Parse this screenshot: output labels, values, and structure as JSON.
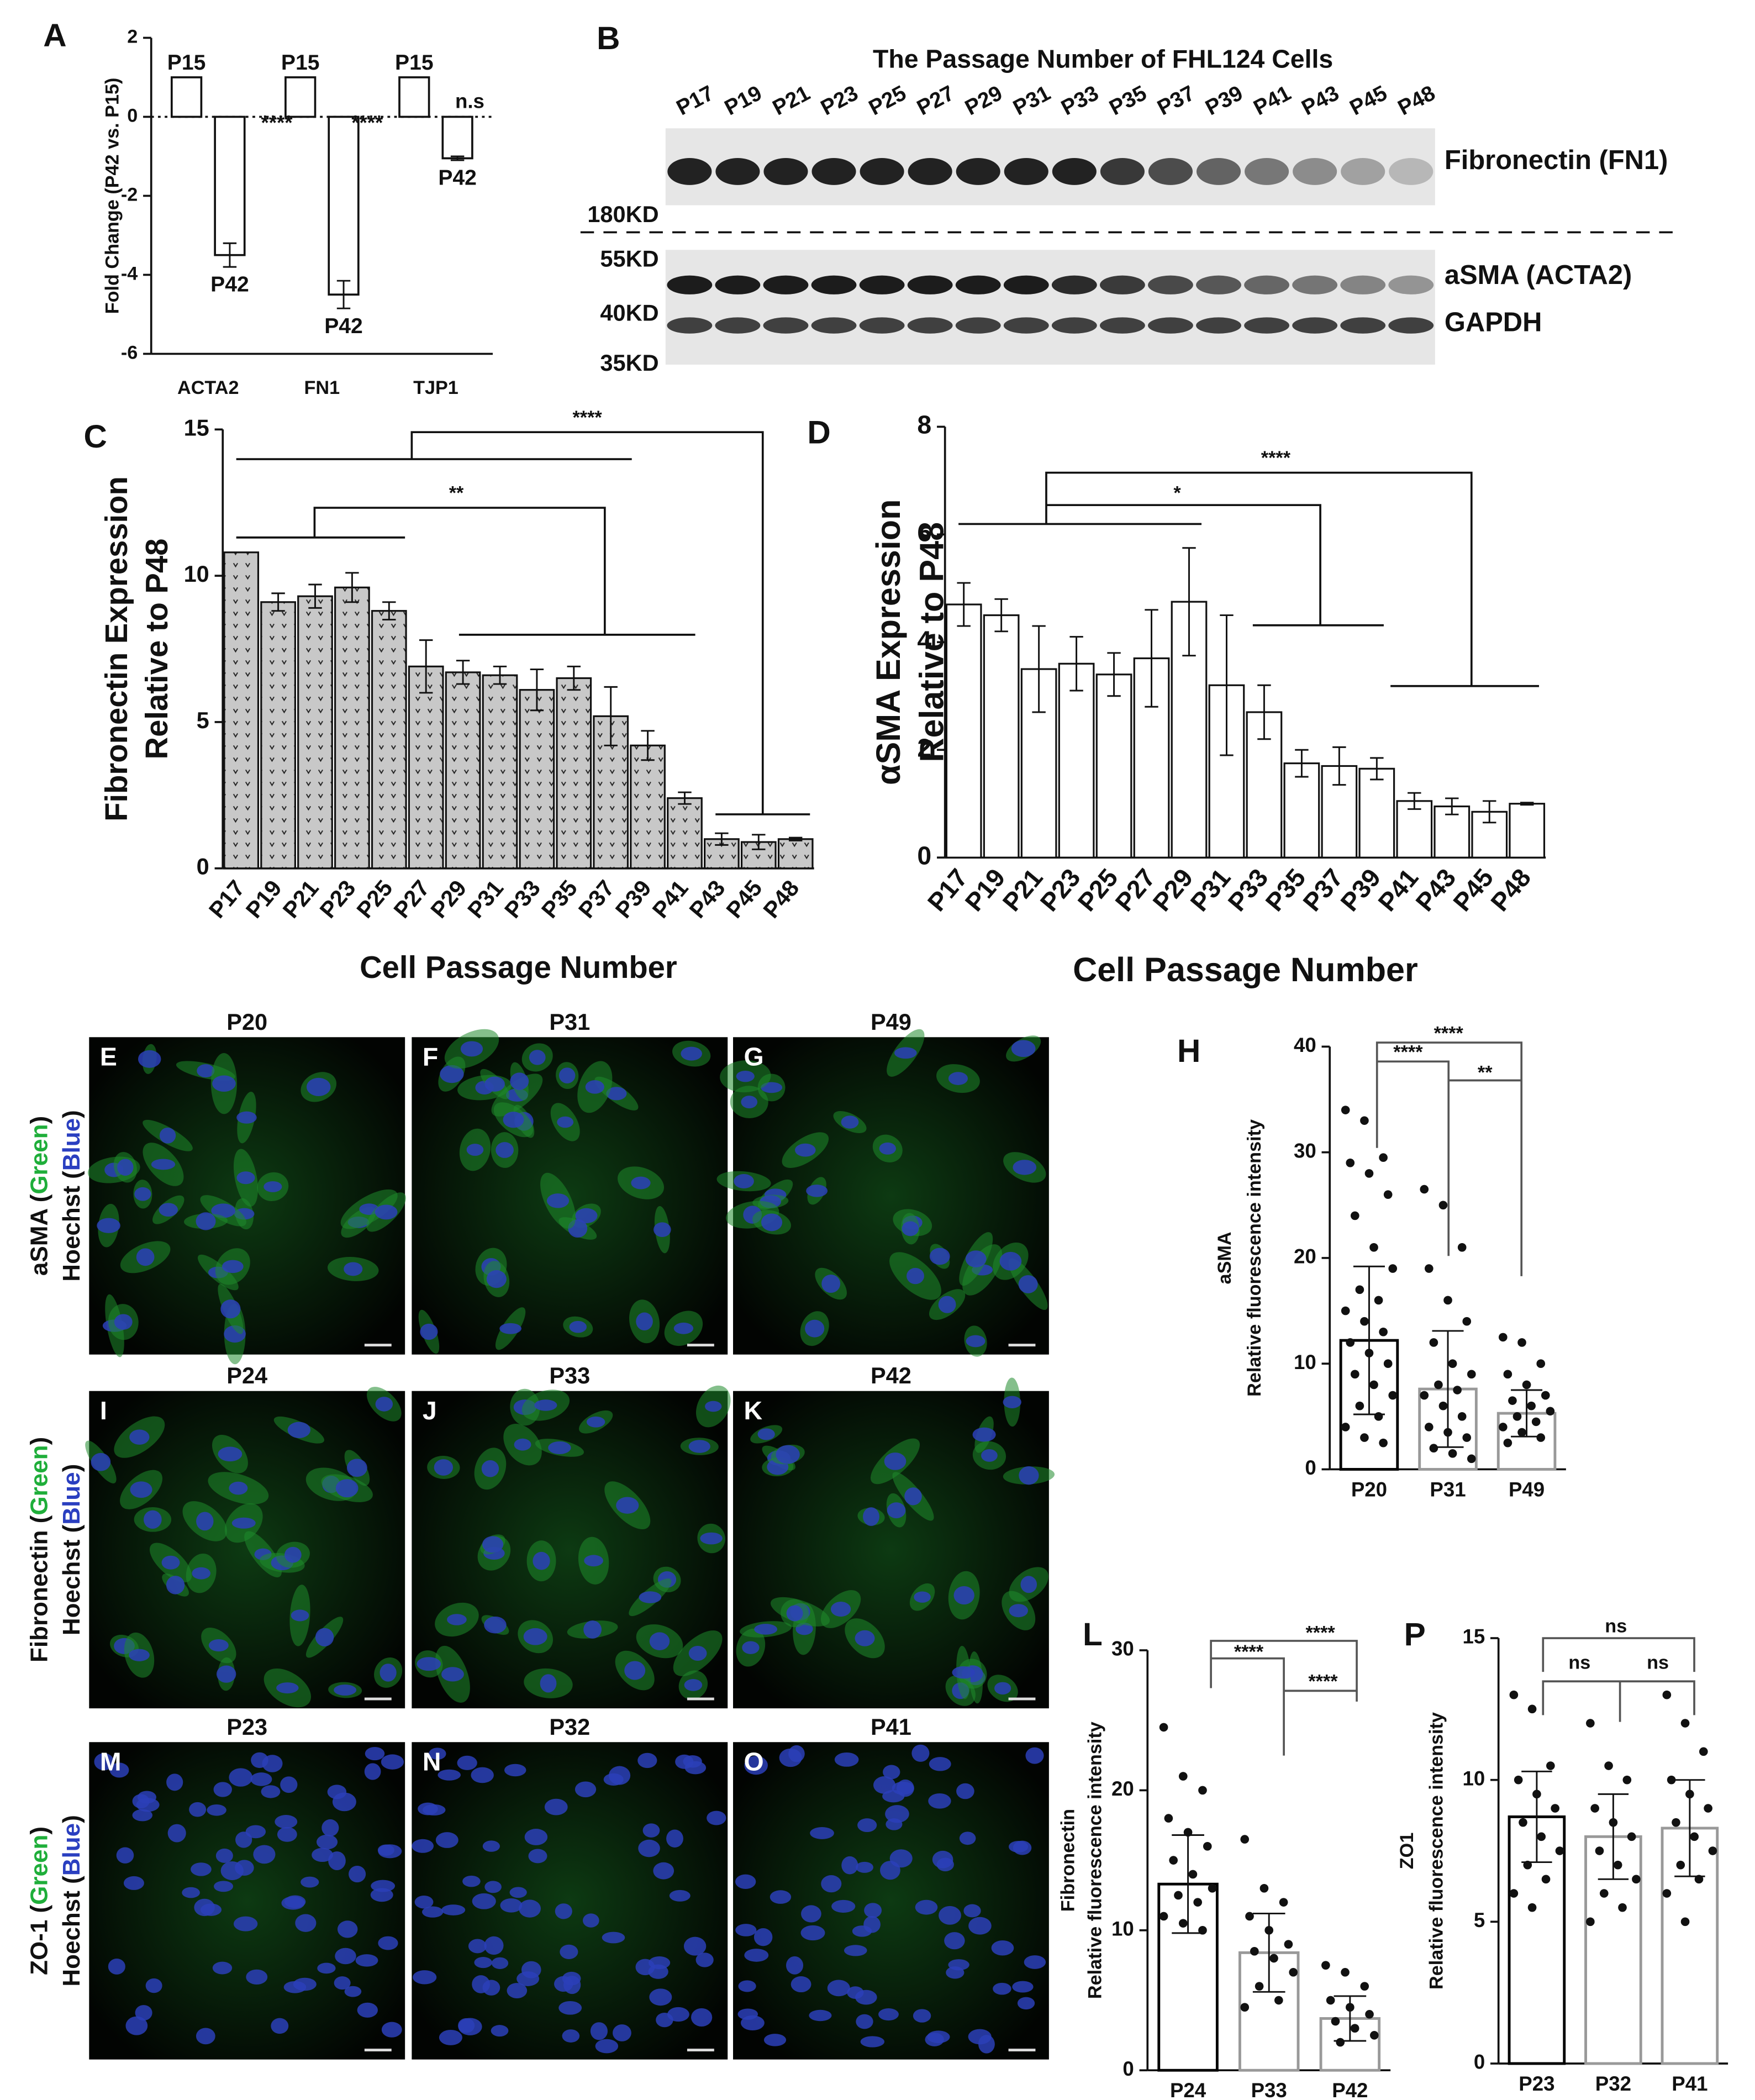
{
  "chart_data": [
    {
      "type": "bar",
      "panel": "A",
      "y_label": [
        "Fold Change (P42 vs. P15)"
      ],
      "categories": [
        "ACTA2",
        "FN1",
        "TJP1"
      ],
      "series": [
        {
          "name": "P15",
          "color": "#ffffff",
          "values": [
            1,
            1,
            1
          ],
          "errors": [
            0,
            0,
            0
          ]
        },
        {
          "name": "P42",
          "color": "#ffffff",
          "values": [
            -3.5,
            -4.5,
            -1.05
          ],
          "errors": [
            0.3,
            0.35,
            0.05
          ]
        }
      ],
      "annotations": [
        "****",
        "****",
        "n.s"
      ],
      "ylim": [
        -6,
        2
      ],
      "yticks": [
        -6,
        -4,
        -2,
        0,
        2
      ]
    },
    {
      "type": "bar",
      "panel": "C",
      "y_label": [
        "Fibronectin Expression",
        "Relative to P48"
      ],
      "x_label": "Cell Passage Number",
      "categories": [
        "P17",
        "P19",
        "P21",
        "P23",
        "P25",
        "P27",
        "P29",
        "P31",
        "P33",
        "P35",
        "P37",
        "P39",
        "P41",
        "P43",
        "P45",
        "P48"
      ],
      "values": [
        10.8,
        9.1,
        9.3,
        9.6,
        8.8,
        6.9,
        6.7,
        6.6,
        6.1,
        6.5,
        5.2,
        4.2,
        2.4,
        1.0,
        0.9,
        1.0
      ],
      "errors": [
        0,
        0.3,
        0.4,
        0.5,
        0.3,
        0.9,
        0.4,
        0.3,
        0.7,
        0.4,
        1.0,
        0.5,
        0.2,
        0.2,
        0.25,
        0.05
      ],
      "color": "#c8c8c8",
      "annotations": [
        "****",
        "**"
      ],
      "ylim": [
        0,
        15
      ],
      "yticks": [
        0,
        5,
        10,
        15
      ]
    },
    {
      "type": "bar",
      "panel": "D",
      "y_label": [
        "αSMA Expression",
        "Relative to P48"
      ],
      "x_label": "Cell Passage Number",
      "categories": [
        "P17",
        "P19",
        "P21",
        "P23",
        "P25",
        "P27",
        "P29",
        "P31",
        "P33",
        "P35",
        "P37",
        "P39",
        "P41",
        "P43",
        "P45",
        "P48"
      ],
      "values": [
        4.7,
        4.5,
        3.5,
        3.6,
        3.4,
        3.7,
        4.75,
        3.2,
        2.7,
        1.75,
        1.7,
        1.65,
        1.05,
        0.95,
        0.85,
        1.0
      ],
      "errors": [
        0.4,
        0.3,
        0.8,
        0.5,
        0.4,
        0.9,
        1.0,
        1.3,
        0.5,
        0.25,
        0.35,
        0.2,
        0.15,
        0.15,
        0.2,
        0.02
      ],
      "color": "#ffffff",
      "annotations": [
        "****",
        "*"
      ],
      "ylim": [
        0,
        8
      ],
      "yticks": [
        0,
        2,
        4,
        6,
        8
      ]
    },
    {
      "type": "dotplot",
      "panel": "H",
      "y_label": [
        "aSMA",
        "Relative fluorescence intensity"
      ],
      "categories": [
        "P20",
        "P31",
        "P49"
      ],
      "colors": [
        "#000000",
        "#999999",
        "#999999"
      ],
      "means": [
        12.2,
        7.6,
        5.3
      ],
      "sds": [
        7,
        5.5,
        2.2
      ],
      "points": [
        [
          34,
          33,
          29.5,
          29,
          28,
          26,
          24,
          21,
          19,
          17,
          16,
          15,
          14,
          13,
          12,
          11,
          10,
          9,
          8,
          7,
          6,
          5,
          4,
          3,
          2.5
        ],
        [
          26.5,
          25,
          21,
          19,
          16,
          14,
          12,
          10,
          9,
          8,
          7.5,
          7,
          6,
          5,
          4,
          3.5,
          3,
          2,
          1.5,
          1
        ],
        [
          12.5,
          12,
          10,
          9,
          8,
          7,
          6.5,
          6,
          5.5,
          5,
          4.5,
          4,
          3.5,
          3,
          2.5
        ]
      ],
      "annotations": [
        "****",
        "****",
        "**"
      ],
      "ylim": [
        0,
        40
      ],
      "yticks": [
        0,
        10,
        20,
        30,
        40
      ]
    },
    {
      "type": "dotplot",
      "panel": "L",
      "y_label": [
        "Fibronectin",
        "Relative fluorescence intensity"
      ],
      "categories": [
        "P24",
        "P33",
        "P42"
      ],
      "colors": [
        "#000000",
        "#999999",
        "#999999"
      ],
      "means": [
        13.3,
        8.4,
        3.7
      ],
      "sds": [
        3.5,
        2.8,
        1.6
      ],
      "points": [
        [
          24.5,
          21,
          20,
          18,
          17,
          16,
          15,
          14,
          13,
          12.5,
          12,
          11,
          10.5,
          10
        ],
        [
          16.5,
          13,
          12,
          11,
          10,
          9,
          8.5,
          8,
          7,
          6,
          5,
          4.5
        ],
        [
          7.5,
          7,
          6,
          5,
          4.5,
          4,
          3.5,
          3,
          2.5,
          2
        ]
      ],
      "annotations": [
        "****",
        "****",
        "****"
      ],
      "ylim": [
        0,
        30
      ],
      "yticks": [
        0,
        10,
        20,
        30
      ]
    },
    {
      "type": "dotplot",
      "panel": "P",
      "y_label": [
        "ZO1",
        "Relative fluorescence intensity"
      ],
      "categories": [
        "P23",
        "P32",
        "P41"
      ],
      "colors": [
        "#000000",
        "#999999",
        "#999999"
      ],
      "means": [
        8.7,
        8.0,
        8.3
      ],
      "sds": [
        1.6,
        1.5,
        1.7
      ],
      "points": [
        [
          13,
          12.5,
          10.5,
          10,
          9.5,
          9,
          8.5,
          8,
          7.5,
          7,
          6.5,
          6,
          5.5
        ],
        [
          12,
          10.5,
          10,
          9,
          8.5,
          8,
          7.5,
          7,
          6.5,
          6,
          5.5,
          5
        ],
        [
          13,
          12,
          11,
          10,
          9.5,
          9,
          8.5,
          8,
          7.5,
          7,
          6.5,
          6,
          5
        ]
      ],
      "annotations": [
        "ns",
        "ns",
        "ns"
      ],
      "ylim": [
        0,
        15
      ],
      "yticks": [
        0,
        5,
        10,
        15
      ]
    }
  ],
  "blot": {
    "panel": "B",
    "title": "The Passage Number of FHL124 Cells",
    "lanes": [
      "P17",
      "P19",
      "P21",
      "P23",
      "P25",
      "P27",
      "P29",
      "P31",
      "P33",
      "P35",
      "P37",
      "P39",
      "P41",
      "P43",
      "P45",
      "P48"
    ],
    "markers": [
      "180KD",
      "55KD",
      "40KD",
      "35KD"
    ],
    "bands": [
      "Fibronectin (FN1)",
      "aSMA (ACTA2)",
      "GAPDH"
    ]
  },
  "micrographs": {
    "rows": [
      {
        "label": [
          [
            "aSMA (",
            "Green",
            ")"
          ],
          [
            "Hoechst (",
            "Blue",
            ")"
          ]
        ],
        "panels": [
          {
            "letter": "E",
            "title": "P20"
          },
          {
            "letter": "F",
            "title": "P31"
          },
          {
            "letter": "G",
            "title": "P49"
          }
        ]
      },
      {
        "label": [
          [
            "Fibronectin (",
            "Green",
            ")"
          ],
          [
            "Hoechst (",
            "Blue",
            ")"
          ]
        ],
        "panels": [
          {
            "letter": "I",
            "title": "P24"
          },
          {
            "letter": "J",
            "title": "P33"
          },
          {
            "letter": "K",
            "title": "P42"
          }
        ]
      },
      {
        "label": [
          [
            "ZO-1 (",
            "Green",
            ")"
          ],
          [
            "Hoechst (",
            "Blue",
            ")"
          ]
        ],
        "panels": [
          {
            "letter": "M",
            "title": "P23"
          },
          {
            "letter": "N",
            "title": "P32"
          },
          {
            "letter": "O",
            "title": "P41"
          }
        ]
      }
    ]
  }
}
